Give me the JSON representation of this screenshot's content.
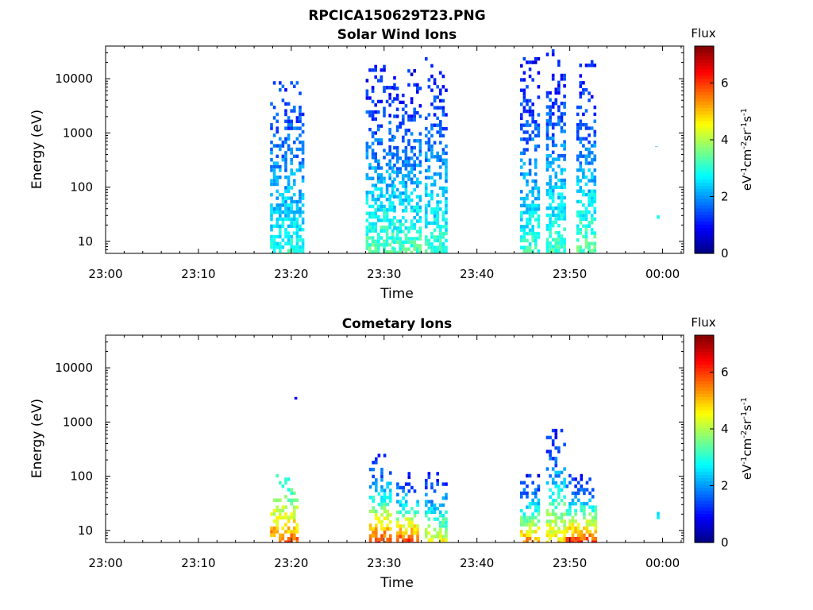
{
  "figure": {
    "title": "RPCICA150629T23.PNG"
  },
  "chart_data": [
    {
      "type": "heatmap",
      "title": "Solar Wind Ions",
      "xlabel": "Time",
      "ylabel": "Energy (eV)",
      "x_ticks": [
        "23:00",
        "23:10",
        "23:20",
        "23:30",
        "23:40",
        "23:50",
        "00:00"
      ],
      "y_ticks": [
        "10",
        "100",
        "1000",
        "10000"
      ],
      "y_scale": "log",
      "ylim": [
        6,
        40000
      ],
      "colorbar": {
        "title": "Flux",
        "ticks": [
          "0",
          "2",
          "4",
          "6"
        ],
        "range": [
          0,
          7.3
        ]
      },
      "bursts": [
        {
          "t0": 23.2953,
          "t1": 23.3536,
          "e_min": 6,
          "e_max": 9000,
          "z_low": 1.3,
          "z_high": 3.0
        },
        {
          "t0": 23.467,
          "t1": 23.5163,
          "e_min": 6,
          "e_max": 18000,
          "z_low": 1.0,
          "z_high": 3.4
        },
        {
          "t0": 23.5163,
          "t1": 23.5644,
          "e_min": 6,
          "e_max": 15000,
          "z_low": 1.0,
          "z_high": 3.3
        },
        {
          "t0": 23.573,
          "t1": 23.6099,
          "e_min": 6,
          "e_max": 25000,
          "z_low": 1.0,
          "z_high": 3.2
        },
        {
          "t0": 23.7441,
          "t1": 23.7773,
          "e_min": 6,
          "e_max": 25000,
          "z_low": 1.0,
          "z_high": 3.1
        },
        {
          "t0": 23.7907,
          "t1": 23.8238,
          "e_min": 6,
          "e_max": 35000,
          "z_low": 1.0,
          "z_high": 3.3
        },
        {
          "t0": 23.8451,
          "t1": 23.8778,
          "e_min": 6,
          "e_max": 22000,
          "z_low": 1.0,
          "z_high": 3.5
        },
        {
          "t0": 23.9895,
          "t1": 23.9935,
          "e_min": 25,
          "e_max": 35,
          "z_low": 2.8,
          "z_high": 3.0
        },
        {
          "t0": 23.9862,
          "t1": 23.989,
          "e_min": 550,
          "e_max": 650,
          "z_low": 1.8,
          "z_high": 2.0
        }
      ]
    },
    {
      "type": "heatmap",
      "title": "Cometary Ions",
      "xlabel": "Time",
      "ylabel": "Energy (eV)",
      "x_ticks": [
        "23:00",
        "23:10",
        "23:20",
        "23:30",
        "23:40",
        "23:50",
        "00:00"
      ],
      "y_ticks": [
        "10",
        "100",
        "1000",
        "10000"
      ],
      "y_scale": "log",
      "ylim": [
        6,
        40000
      ],
      "colorbar": {
        "title": "Flux",
        "ticks": [
          "0",
          "2",
          "4",
          "6"
        ],
        "range": [
          0,
          7.3
        ]
      },
      "bursts": [
        {
          "t0": 23.2953,
          "t1": 23.3432,
          "e_min": 6,
          "e_max": 110,
          "z_low": 3.0,
          "z_high": 5.8
        },
        {
          "t0": 23.339,
          "t1": 23.344,
          "e_min": 2600,
          "e_max": 2900,
          "z_low": 0.9,
          "z_high": 1.1
        },
        {
          "t0": 23.473,
          "t1": 23.509,
          "e_min": 6,
          "e_max": 260,
          "z_low": 1.0,
          "z_high": 6.2
        },
        {
          "t0": 23.5218,
          "t1": 23.5586,
          "e_min": 6,
          "e_max": 120,
          "z_low": 1.0,
          "z_high": 6.3
        },
        {
          "t0": 23.532,
          "t1": 23.535,
          "e_min": 1050,
          "e_max": 1200,
          "z_low": 1.3,
          "z_high": 1.5
        },
        {
          "t0": 23.573,
          "t1": 23.6091,
          "e_min": 6,
          "e_max": 120,
          "z_low": 1.0,
          "z_high": 4.8
        },
        {
          "t0": 23.7441,
          "t1": 23.7773,
          "e_min": 6,
          "e_max": 110,
          "z_low": 1.0,
          "z_high": 5.7
        },
        {
          "t0": 23.7907,
          "t1": 23.8238,
          "e_min": 6,
          "e_max": 750,
          "z_low": 1.0,
          "z_high": 5.0
        },
        {
          "t0": 23.826,
          "t1": 23.8778,
          "e_min": 6,
          "e_max": 110,
          "z_low": 1.0,
          "z_high": 6.4
        },
        {
          "t0": 23.9895,
          "t1": 23.9935,
          "e_min": 16,
          "e_max": 22,
          "z_low": 2.8,
          "z_high": 3.0
        }
      ]
    }
  ]
}
